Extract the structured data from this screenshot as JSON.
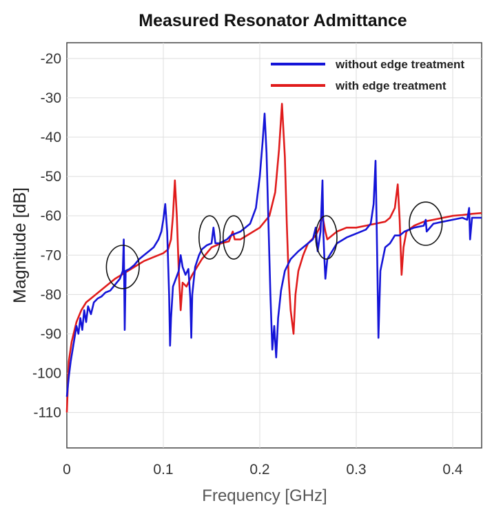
{
  "chart_data": {
    "type": "line",
    "title": "Measured Resonator Admittance",
    "xlabel": "Frequency [GHz]",
    "ylabel": "Magnitude [dB]",
    "xlim": [
      0,
      0.43
    ],
    "ylim": [
      -119,
      -16
    ],
    "x_ticks": [
      0,
      0.1,
      0.2,
      0.3,
      0.4
    ],
    "x_tick_labels": [
      "0",
      "0.1",
      "0.2",
      "0.3",
      "0.4"
    ],
    "y_ticks": [
      -110,
      -100,
      -90,
      -80,
      -70,
      -60,
      -50,
      -40,
      -30,
      -20
    ],
    "y_tick_labels": [
      "-110",
      "-100",
      "-90",
      "-80",
      "-70",
      "-60",
      "-50",
      "-40",
      "-30",
      "-20"
    ],
    "grid": true,
    "legend_position": "top-right",
    "series": [
      {
        "name": "with edge treatment",
        "color": "#e01b1b",
        "points": [
          [
            0,
            -110
          ],
          [
            0.002,
            -97
          ],
          [
            0.005,
            -92
          ],
          [
            0.01,
            -87
          ],
          [
            0.015,
            -84
          ],
          [
            0.02,
            -82
          ],
          [
            0.03,
            -80
          ],
          [
            0.04,
            -78
          ],
          [
            0.05,
            -76
          ],
          [
            0.06,
            -74.5
          ],
          [
            0.07,
            -73
          ],
          [
            0.08,
            -71.5
          ],
          [
            0.09,
            -70.5
          ],
          [
            0.1,
            -69.5
          ],
          [
            0.105,
            -68.5
          ],
          [
            0.108,
            -66
          ],
          [
            0.11,
            -60
          ],
          [
            0.112,
            -51
          ],
          [
            0.114,
            -60
          ],
          [
            0.116,
            -74
          ],
          [
            0.118,
            -84
          ],
          [
            0.12,
            -77
          ],
          [
            0.124,
            -78
          ],
          [
            0.13,
            -75
          ],
          [
            0.14,
            -71
          ],
          [
            0.15,
            -68
          ],
          [
            0.16,
            -67
          ],
          [
            0.168,
            -66.5
          ],
          [
            0.172,
            -64
          ],
          [
            0.174,
            -66
          ],
          [
            0.18,
            -66
          ],
          [
            0.19,
            -64.5
          ],
          [
            0.2,
            -63
          ],
          [
            0.21,
            -60
          ],
          [
            0.216,
            -54
          ],
          [
            0.22,
            -43
          ],
          [
            0.223,
            -31.5
          ],
          [
            0.226,
            -45
          ],
          [
            0.228,
            -62
          ],
          [
            0.23,
            -76
          ],
          [
            0.232,
            -84
          ],
          [
            0.235,
            -90
          ],
          [
            0.237,
            -80
          ],
          [
            0.24,
            -74
          ],
          [
            0.245,
            -70
          ],
          [
            0.25,
            -67
          ],
          [
            0.258,
            -65
          ],
          [
            0.262,
            -63
          ],
          [
            0.265,
            -60
          ],
          [
            0.268,
            -64
          ],
          [
            0.27,
            -66
          ],
          [
            0.28,
            -64
          ],
          [
            0.29,
            -63
          ],
          [
            0.3,
            -63
          ],
          [
            0.31,
            -62.5
          ],
          [
            0.32,
            -62
          ],
          [
            0.33,
            -61.5
          ],
          [
            0.335,
            -60.5
          ],
          [
            0.34,
            -58
          ],
          [
            0.343,
            -52
          ],
          [
            0.345,
            -61
          ],
          [
            0.347,
            -75
          ],
          [
            0.349,
            -68
          ],
          [
            0.352,
            -64
          ],
          [
            0.36,
            -62.5
          ],
          [
            0.37,
            -61.5
          ],
          [
            0.38,
            -61
          ],
          [
            0.39,
            -60.5
          ],
          [
            0.4,
            -60
          ],
          [
            0.41,
            -59.8
          ],
          [
            0.42,
            -59.5
          ],
          [
            0.43,
            -59.3
          ]
        ]
      },
      {
        "name": "without edge treatment",
        "color": "#1414d8",
        "points": [
          [
            0,
            -106
          ],
          [
            0.002,
            -101
          ],
          [
            0.004,
            -97
          ],
          [
            0.006,
            -94
          ],
          [
            0.008,
            -91
          ],
          [
            0.01,
            -88
          ],
          [
            0.012,
            -90
          ],
          [
            0.014,
            -86
          ],
          [
            0.016,
            -89
          ],
          [
            0.018,
            -84
          ],
          [
            0.02,
            -87
          ],
          [
            0.022,
            -83
          ],
          [
            0.025,
            -85
          ],
          [
            0.028,
            -82
          ],
          [
            0.032,
            -81
          ],
          [
            0.036,
            -80.5
          ],
          [
            0.04,
            -79.5
          ],
          [
            0.045,
            -79
          ],
          [
            0.05,
            -77.5
          ],
          [
            0.055,
            -76
          ],
          [
            0.058,
            -74
          ],
          [
            0.059,
            -66
          ],
          [
            0.06,
            -89
          ],
          [
            0.061,
            -74
          ],
          [
            0.065,
            -73.5
          ],
          [
            0.07,
            -72.5
          ],
          [
            0.075,
            -71
          ],
          [
            0.08,
            -70
          ],
          [
            0.085,
            -69
          ],
          [
            0.09,
            -68
          ],
          [
            0.095,
            -66
          ],
          [
            0.098,
            -64
          ],
          [
            0.1,
            -61
          ],
          [
            0.102,
            -57
          ],
          [
            0.104,
            -64
          ],
          [
            0.106,
            -80
          ],
          [
            0.107,
            -93
          ],
          [
            0.108,
            -86
          ],
          [
            0.11,
            -78
          ],
          [
            0.113,
            -76
          ],
          [
            0.116,
            -74
          ],
          [
            0.118,
            -70
          ],
          [
            0.12,
            -73
          ],
          [
            0.123,
            -75
          ],
          [
            0.126,
            -73.5
          ],
          [
            0.128,
            -81
          ],
          [
            0.129,
            -91
          ],
          [
            0.13,
            -80
          ],
          [
            0.133,
            -73
          ],
          [
            0.137,
            -70
          ],
          [
            0.14,
            -68.5
          ],
          [
            0.145,
            -67.5
          ],
          [
            0.15,
            -67
          ],
          [
            0.152,
            -63
          ],
          [
            0.154,
            -67
          ],
          [
            0.158,
            -67
          ],
          [
            0.162,
            -66.5
          ],
          [
            0.166,
            -66
          ],
          [
            0.17,
            -65
          ],
          [
            0.18,
            -64
          ],
          [
            0.19,
            -62
          ],
          [
            0.196,
            -58
          ],
          [
            0.2,
            -50
          ],
          [
            0.203,
            -41
          ],
          [
            0.205,
            -34
          ],
          [
            0.207,
            -44
          ],
          [
            0.209,
            -62
          ],
          [
            0.211,
            -80
          ],
          [
            0.213,
            -94
          ],
          [
            0.215,
            -88
          ],
          [
            0.217,
            -96
          ],
          [
            0.219,
            -86
          ],
          [
            0.222,
            -79
          ],
          [
            0.226,
            -74
          ],
          [
            0.232,
            -71
          ],
          [
            0.24,
            -69
          ],
          [
            0.25,
            -67
          ],
          [
            0.255,
            -66
          ],
          [
            0.258,
            -63
          ],
          [
            0.26,
            -69
          ],
          [
            0.263,
            -64
          ],
          [
            0.265,
            -51
          ],
          [
            0.266,
            -65
          ],
          [
            0.267,
            -71
          ],
          [
            0.268,
            -76
          ],
          [
            0.27,
            -71
          ],
          [
            0.275,
            -69
          ],
          [
            0.28,
            -67
          ],
          [
            0.29,
            -65.5
          ],
          [
            0.3,
            -64.5
          ],
          [
            0.31,
            -63.5
          ],
          [
            0.315,
            -62
          ],
          [
            0.318,
            -57
          ],
          [
            0.32,
            -46
          ],
          [
            0.321,
            -60
          ],
          [
            0.322,
            -75
          ],
          [
            0.323,
            -91
          ],
          [
            0.325,
            -74
          ],
          [
            0.33,
            -68
          ],
          [
            0.335,
            -67
          ],
          [
            0.34,
            -65
          ],
          [
            0.345,
            -65
          ],
          [
            0.35,
            -64
          ],
          [
            0.36,
            -63
          ],
          [
            0.37,
            -62.5
          ],
          [
            0.372,
            -61
          ],
          [
            0.373,
            -64
          ],
          [
            0.38,
            -62
          ],
          [
            0.39,
            -61.5
          ],
          [
            0.4,
            -61
          ],
          [
            0.41,
            -60.5
          ],
          [
            0.415,
            -61
          ],
          [
            0.417,
            -58
          ],
          [
            0.418,
            -66
          ],
          [
            0.42,
            -60.5
          ],
          [
            0.425,
            -60.5
          ],
          [
            0.43,
            -60.5
          ]
        ]
      }
    ],
    "annotation_circles": [
      {
        "x": 0.058,
        "y": -73,
        "rx_data": 0.017,
        "ry_data": 5.5
      },
      {
        "x": 0.148,
        "y": -65.5,
        "rx_data": 0.011,
        "ry_data": 5.5
      },
      {
        "x": 0.173,
        "y": -65.5,
        "rx_data": 0.011,
        "ry_data": 5.5
      },
      {
        "x": 0.269,
        "y": -65.5,
        "rx_data": 0.011,
        "ry_data": 5.5
      },
      {
        "x": 0.372,
        "y": -62,
        "rx_data": 0.017,
        "ry_data": 5.5
      }
    ]
  }
}
